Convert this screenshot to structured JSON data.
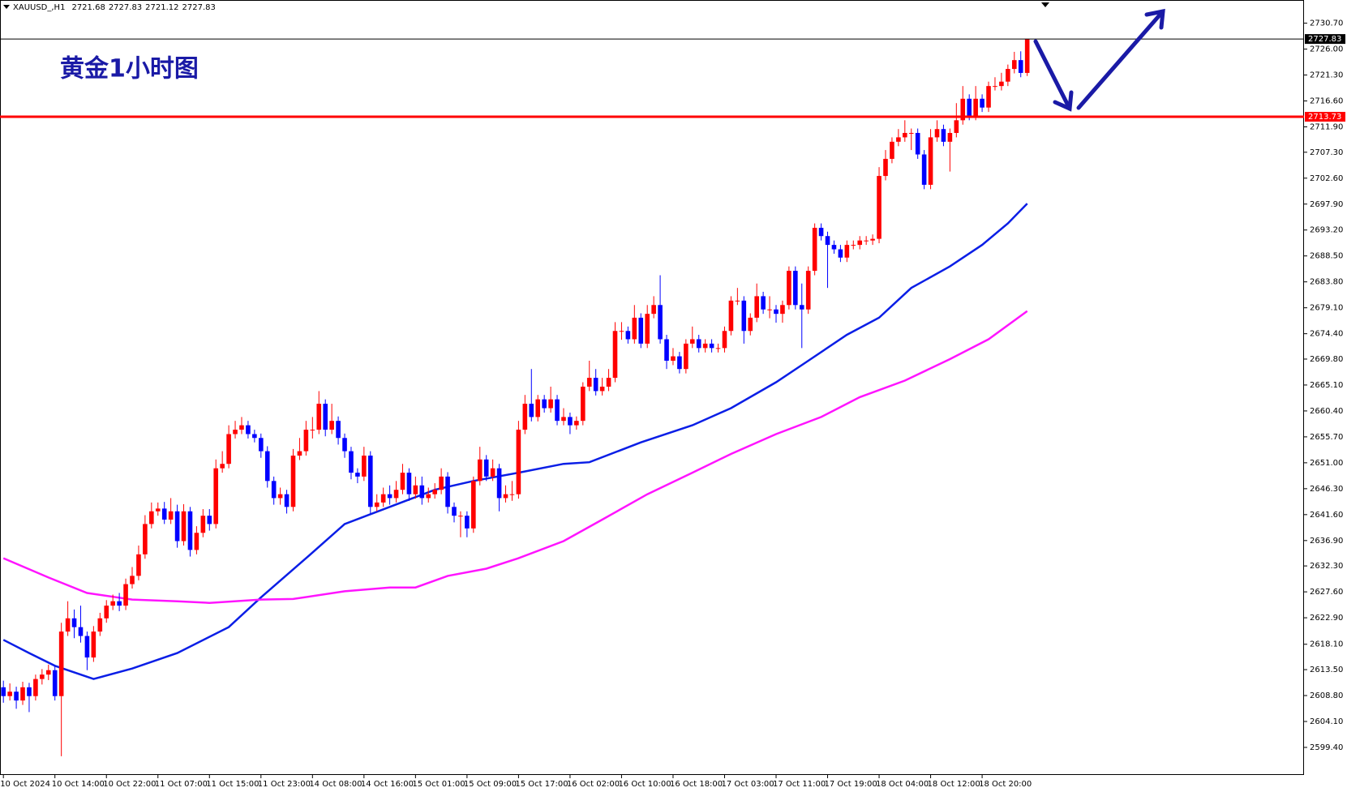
{
  "chart_data": {
    "type": "candlestick",
    "symbol": "XAUUSD_,H1",
    "title": "黄金1小时图",
    "up_color": "#ff0000",
    "down_color": "#0000ff",
    "ylim": [
      2594.4,
      2734.9
    ],
    "yticks": [
      {
        "value": 2599.4,
        "label": "2599.40"
      },
      {
        "value": 2604.1,
        "label": "2604.10"
      },
      {
        "value": 2608.8,
        "label": "2608.80"
      },
      {
        "value": 2613.5,
        "label": "2613.50"
      },
      {
        "value": 2618.1,
        "label": "2618.10"
      },
      {
        "value": 2622.9,
        "label": "2622.90"
      },
      {
        "value": 2627.6,
        "label": "2627.60"
      },
      {
        "value": 2632.3,
        "label": "2632.30"
      },
      {
        "value": 2636.9,
        "label": "2636.90"
      },
      {
        "value": 2641.6,
        "label": "2641.60"
      },
      {
        "value": 2646.3,
        "label": "2646.30"
      },
      {
        "value": 2651.0,
        "label": "2651.00"
      },
      {
        "value": 2655.7,
        "label": "2655.70"
      },
      {
        "value": 2660.4,
        "label": "2660.40"
      },
      {
        "value": 2665.1,
        "label": "2665.10"
      },
      {
        "value": 2669.8,
        "label": "2669.80"
      },
      {
        "value": 2674.4,
        "label": "2674.40"
      },
      {
        "value": 2679.1,
        "label": "2679.10"
      },
      {
        "value": 2683.8,
        "label": "2683.80"
      },
      {
        "value": 2688.5,
        "label": "2688.50"
      },
      {
        "value": 2693.2,
        "label": "2693.20"
      },
      {
        "value": 2697.9,
        "label": "2697.90"
      },
      {
        "value": 2702.6,
        "label": "2702.60"
      },
      {
        "value": 2707.3,
        "label": "2707.30"
      },
      {
        "value": 2711.9,
        "label": "2711.90"
      },
      {
        "value": 2716.6,
        "label": "2716.60"
      },
      {
        "value": 2721.3,
        "label": "2721.30"
      },
      {
        "value": 2726.0,
        "label": "2726.00"
      },
      {
        "value": 2730.7,
        "label": "2730.70"
      }
    ],
    "price_lines": [
      {
        "value": 2713.73,
        "color": "#ff0000"
      },
      {
        "value": 2727.83,
        "color": "#000000"
      }
    ],
    "categories": [
      "10 Oct 2024",
      null,
      null,
      null,
      null,
      null,
      null,
      null,
      "10 Oct 14:00",
      null,
      null,
      null,
      null,
      null,
      null,
      null,
      "10 Oct 22:00",
      null,
      null,
      null,
      null,
      null,
      null,
      null,
      "11 Oct 07:00",
      null,
      null,
      null,
      null,
      null,
      null,
      null,
      "11 Oct 15:00",
      null,
      null,
      null,
      null,
      null,
      null,
      null,
      "11 Oct 23:00",
      null,
      null,
      null,
      null,
      null,
      null,
      null,
      "14 Oct 08:00",
      null,
      null,
      null,
      null,
      null,
      null,
      null,
      "14 Oct 16:00",
      null,
      null,
      null,
      null,
      null,
      null,
      null,
      "15 Oct 01:00",
      null,
      null,
      null,
      null,
      null,
      null,
      null,
      "15 Oct 09:00",
      null,
      null,
      null,
      null,
      null,
      null,
      null,
      "15 Oct 17:00",
      null,
      null,
      null,
      null,
      null,
      null,
      null,
      "16 Oct 02:00",
      null,
      null,
      null,
      null,
      null,
      null,
      null,
      "16 Oct 10:00",
      null,
      null,
      null,
      null,
      null,
      null,
      null,
      "16 Oct 18:00",
      null,
      null,
      null,
      null,
      null,
      null,
      null,
      "17 Oct 03:00",
      null,
      null,
      null,
      null,
      null,
      null,
      null,
      "17 Oct 11:00",
      null,
      null,
      null,
      null,
      null,
      null,
      null,
      "17 Oct 19:00",
      null,
      null,
      null,
      null,
      null,
      null,
      null,
      "18 Oct 04:00",
      null,
      null,
      null,
      null,
      null,
      null,
      null,
      "18 Oct 12:00",
      null,
      null,
      null,
      null,
      null,
      null,
      null,
      "18 Oct 20:00",
      null,
      null,
      null,
      null,
      null,
      null,
      null
    ],
    "ohlc": [
      [
        2610.3,
        2611.5,
        2607.5,
        2608.7
      ],
      [
        2608.7,
        2611.0,
        2607.9,
        2609.5
      ],
      [
        2609.5,
        2610.4,
        2606.4,
        2607.9
      ],
      [
        2607.9,
        2611.3,
        2607.1,
        2610.3
      ],
      [
        2610.3,
        2611.1,
        2605.8,
        2608.7
      ],
      [
        2608.7,
        2612.6,
        2607.9,
        2611.8
      ],
      [
        2611.8,
        2613.6,
        2610.8,
        2612.6
      ],
      [
        2612.6,
        2614.4,
        2611.6,
        2613.4
      ],
      [
        2613.4,
        2614.2,
        2607.9,
        2608.7
      ],
      [
        2608.7,
        2622.0,
        2597.8,
        2620.4
      ],
      [
        2620.4,
        2625.9,
        2619.6,
        2622.8
      ],
      [
        2622.8,
        2624.4,
        2619.2,
        2621.2
      ],
      [
        2621.2,
        2625.1,
        2618.4,
        2619.6
      ],
      [
        2619.6,
        2620.4,
        2613.4,
        2615.7
      ],
      [
        2615.7,
        2621.4,
        2614.9,
        2620.4
      ],
      [
        2620.4,
        2623.8,
        2619.6,
        2622.8
      ],
      [
        2622.8,
        2626.1,
        2622.0,
        2625.1
      ],
      [
        2625.1,
        2627.1,
        2624.3,
        2625.9
      ],
      [
        2625.9,
        2627.4,
        2624.1,
        2625.1
      ],
      [
        2625.1,
        2630.0,
        2624.3,
        2629.0
      ],
      [
        2629.0,
        2632.1,
        2628.2,
        2630.5
      ],
      [
        2630.5,
        2636.0,
        2629.7,
        2634.4
      ],
      [
        2634.4,
        2641.5,
        2633.6,
        2639.9
      ],
      [
        2639.9,
        2643.8,
        2639.1,
        2642.2
      ],
      [
        2642.2,
        2643.8,
        2641.4,
        2642.7
      ],
      [
        2642.7,
        2643.9,
        2639.9,
        2640.7
      ],
      [
        2640.7,
        2644.6,
        2639.9,
        2642.2
      ],
      [
        2642.2,
        2643.4,
        2635.6,
        2636.8
      ],
      [
        2636.8,
        2643.5,
        2636.0,
        2642.2
      ],
      [
        2642.2,
        2643.0,
        2634.0,
        2635.2
      ],
      [
        2635.2,
        2639.5,
        2634.4,
        2638.3
      ],
      [
        2638.3,
        2642.6,
        2637.5,
        2641.4
      ],
      [
        2641.4,
        2642.6,
        2638.7,
        2639.9
      ],
      [
        2639.9,
        2651.6,
        2639.1,
        2650.0
      ],
      [
        2650.0,
        2653.1,
        2649.2,
        2650.8
      ],
      [
        2650.8,
        2657.8,
        2650.0,
        2656.2
      ],
      [
        2656.2,
        2658.6,
        2655.4,
        2657.0
      ],
      [
        2657.0,
        2659.3,
        2656.2,
        2657.8
      ],
      [
        2657.8,
        2658.6,
        2655.4,
        2656.2
      ],
      [
        2656.2,
        2657.0,
        2654.7,
        2655.5
      ],
      [
        2655.5,
        2656.3,
        2651.9,
        2653.1
      ],
      [
        2653.1,
        2654.0,
        2646.5,
        2647.7
      ],
      [
        2647.7,
        2648.5,
        2643.4,
        2644.6
      ],
      [
        2644.6,
        2646.5,
        2643.4,
        2645.3
      ],
      [
        2645.3,
        2646.1,
        2641.8,
        2643.0
      ],
      [
        2643.0,
        2653.5,
        2642.2,
        2652.3
      ],
      [
        2652.3,
        2655.5,
        2651.5,
        2653.1
      ],
      [
        2653.1,
        2658.6,
        2652.3,
        2657.0
      ],
      [
        2657.0,
        2659.3,
        2655.4,
        2657.0
      ],
      [
        2657.0,
        2664.0,
        2656.2,
        2661.7
      ],
      [
        2661.7,
        2662.5,
        2655.8,
        2657.0
      ],
      [
        2657.0,
        2661.7,
        2656.2,
        2658.6
      ],
      [
        2658.6,
        2659.4,
        2654.3,
        2655.5
      ],
      [
        2655.5,
        2656.3,
        2651.9,
        2653.1
      ],
      [
        2653.1,
        2653.9,
        2648.0,
        2649.2
      ],
      [
        2649.2,
        2650.0,
        2647.3,
        2648.5
      ],
      [
        2648.5,
        2653.9,
        2647.7,
        2652.3
      ],
      [
        2652.3,
        2653.1,
        2641.8,
        2643.0
      ],
      [
        2643.0,
        2645.3,
        2642.2,
        2643.8
      ],
      [
        2643.8,
        2646.5,
        2643.0,
        2645.3
      ],
      [
        2645.3,
        2646.9,
        2643.4,
        2644.6
      ],
      [
        2644.6,
        2647.7,
        2643.8,
        2646.1
      ],
      [
        2646.1,
        2650.8,
        2645.3,
        2649.2
      ],
      [
        2649.2,
        2650.0,
        2644.1,
        2645.3
      ],
      [
        2645.3,
        2648.5,
        2644.5,
        2646.9
      ],
      [
        2646.9,
        2648.5,
        2643.4,
        2644.6
      ],
      [
        2644.6,
        2646.5,
        2643.8,
        2645.3
      ],
      [
        2645.3,
        2647.3,
        2644.5,
        2646.1
      ],
      [
        2646.1,
        2650.0,
        2645.3,
        2648.5
      ],
      [
        2648.5,
        2649.3,
        2641.8,
        2643.0
      ],
      [
        2643.0,
        2643.8,
        2640.2,
        2641.4
      ],
      [
        2641.4,
        2642.2,
        2637.5,
        2641.4
      ],
      [
        2641.4,
        2642.2,
        2637.5,
        2639.1
      ],
      [
        2639.1,
        2648.5,
        2638.3,
        2647.7
      ],
      [
        2647.7,
        2653.9,
        2646.9,
        2651.6
      ],
      [
        2651.6,
        2652.4,
        2647.7,
        2648.5
      ],
      [
        2648.5,
        2651.6,
        2647.7,
        2650.0
      ],
      [
        2650.0,
        2650.8,
        2642.2,
        2644.6
      ],
      [
        2644.6,
        2646.9,
        2643.8,
        2645.3
      ],
      [
        2645.3,
        2647.7,
        2644.1,
        2645.3
      ],
      [
        2645.3,
        2658.6,
        2644.5,
        2657.0
      ],
      [
        2657.0,
        2663.3,
        2656.2,
        2661.7
      ],
      [
        2661.7,
        2668.0,
        2658.5,
        2659.3
      ],
      [
        2659.3,
        2663.3,
        2658.5,
        2662.5
      ],
      [
        2662.5,
        2663.3,
        2660.1,
        2660.9
      ],
      [
        2660.9,
        2664.8,
        2660.1,
        2662.5
      ],
      [
        2662.5,
        2663.3,
        2657.8,
        2658.6
      ],
      [
        2658.6,
        2660.9,
        2657.8,
        2659.3
      ],
      [
        2659.3,
        2660.1,
        2656.2,
        2657.8
      ],
      [
        2657.8,
        2659.4,
        2657.0,
        2658.6
      ],
      [
        2658.6,
        2665.6,
        2657.8,
        2664.8
      ],
      [
        2664.8,
        2669.5,
        2664.0,
        2666.4
      ],
      [
        2666.4,
        2668.0,
        2663.2,
        2664.0
      ],
      [
        2664.0,
        2666.4,
        2663.2,
        2664.8
      ],
      [
        2664.8,
        2668.0,
        2664.0,
        2666.4
      ],
      [
        2666.4,
        2676.5,
        2665.6,
        2674.9
      ],
      [
        2674.9,
        2676.5,
        2673.3,
        2674.9
      ],
      [
        2674.9,
        2675.7,
        2672.6,
        2673.4
      ],
      [
        2673.4,
        2679.6,
        2672.6,
        2677.3
      ],
      [
        2677.3,
        2678.1,
        2671.8,
        2672.6
      ],
      [
        2672.6,
        2679.6,
        2671.8,
        2678.0
      ],
      [
        2678.0,
        2681.2,
        2677.2,
        2679.6
      ],
      [
        2679.6,
        2685.0,
        2672.6,
        2673.4
      ],
      [
        2673.4,
        2674.2,
        2668.0,
        2669.5
      ],
      [
        2669.5,
        2671.8,
        2668.7,
        2670.3
      ],
      [
        2670.3,
        2671.1,
        2667.2,
        2668.0
      ],
      [
        2668.0,
        2673.4,
        2667.2,
        2672.6
      ],
      [
        2672.6,
        2675.7,
        2671.8,
        2673.4
      ],
      [
        2673.4,
        2674.2,
        2671.0,
        2671.8
      ],
      [
        2671.8,
        2673.4,
        2671.0,
        2672.6
      ],
      [
        2672.6,
        2673.4,
        2671.0,
        2671.8
      ],
      [
        2671.8,
        2672.6,
        2671.0,
        2671.8
      ],
      [
        2671.8,
        2675.7,
        2671.0,
        2674.9
      ],
      [
        2674.9,
        2681.2,
        2674.1,
        2680.4
      ],
      [
        2680.4,
        2682.7,
        2679.6,
        2680.4
      ],
      [
        2680.4,
        2681.2,
        2672.6,
        2674.9
      ],
      [
        2674.9,
        2678.1,
        2674.1,
        2677.3
      ],
      [
        2677.3,
        2683.5,
        2676.5,
        2681.2
      ],
      [
        2681.2,
        2682.0,
        2678.0,
        2678.8
      ],
      [
        2678.8,
        2681.2,
        2677.2,
        2678.8
      ],
      [
        2678.8,
        2679.6,
        2676.4,
        2678.0
      ],
      [
        2678.0,
        2680.4,
        2676.4,
        2679.6
      ],
      [
        2679.6,
        2686.6,
        2678.8,
        2685.8
      ],
      [
        2685.8,
        2686.6,
        2678.8,
        2679.6
      ],
      [
        2679.6,
        2683.5,
        2671.8,
        2678.8
      ],
      [
        2678.8,
        2686.6,
        2678.0,
        2685.8
      ],
      [
        2685.8,
        2694.4,
        2685.0,
        2693.6
      ],
      [
        2693.6,
        2694.4,
        2691.3,
        2692.1
      ],
      [
        2692.1,
        2692.9,
        2682.7,
        2690.5
      ],
      [
        2690.5,
        2691.3,
        2688.9,
        2689.7
      ],
      [
        2689.7,
        2690.5,
        2687.4,
        2688.2
      ],
      [
        2688.2,
        2691.3,
        2687.4,
        2690.5
      ],
      [
        2690.5,
        2691.3,
        2689.7,
        2690.5
      ],
      [
        2690.5,
        2692.1,
        2689.7,
        2691.3
      ],
      [
        2691.3,
        2692.1,
        2690.5,
        2691.3
      ],
      [
        2691.3,
        2692.4,
        2690.5,
        2691.6
      ],
      [
        2691.6,
        2704.6,
        2690.8,
        2703.0
      ],
      [
        2703.0,
        2707.7,
        2702.2,
        2706.1
      ],
      [
        2706.1,
        2710.0,
        2705.3,
        2709.2
      ],
      [
        2709.2,
        2711.5,
        2708.4,
        2710.0
      ],
      [
        2710.0,
        2713.1,
        2709.2,
        2710.8
      ],
      [
        2710.8,
        2711.6,
        2707.7,
        2710.8
      ],
      [
        2710.8,
        2711.6,
        2706.1,
        2706.9
      ],
      [
        2706.9,
        2707.7,
        2700.6,
        2701.4
      ],
      [
        2701.4,
        2711.5,
        2700.6,
        2710.0
      ],
      [
        2710.0,
        2713.1,
        2709.2,
        2711.5
      ],
      [
        2711.5,
        2712.3,
        2708.4,
        2709.2
      ],
      [
        2709.2,
        2711.6,
        2703.8,
        2710.8
      ],
      [
        2710.8,
        2716.2,
        2710.0,
        2713.1
      ],
      [
        2713.1,
        2719.3,
        2712.3,
        2717.0
      ],
      [
        2717.0,
        2717.8,
        2713.1,
        2713.9
      ],
      [
        2713.9,
        2719.3,
        2713.1,
        2717.0
      ],
      [
        2717.0,
        2717.8,
        2714.6,
        2715.4
      ],
      [
        2715.4,
        2720.1,
        2714.6,
        2719.3
      ],
      [
        2719.3,
        2720.9,
        2718.5,
        2719.3
      ],
      [
        2719.3,
        2721.7,
        2718.5,
        2720.1
      ],
      [
        2720.1,
        2723.2,
        2719.3,
        2722.4
      ],
      [
        2722.4,
        2725.5,
        2721.6,
        2724.0
      ],
      [
        2724.0,
        2725.6,
        2720.9,
        2721.68
      ],
      [
        2721.68,
        2727.83,
        2721.12,
        2727.83
      ]
    ],
    "series": [
      {
        "color": "#0a1ee6",
        "x": [
          0,
          4,
          8,
          14,
          20,
          27,
          35,
          40,
          47,
          53,
          60,
          67,
          73,
          80,
          87,
          91,
          99,
          107,
          113,
          120,
          125,
          131,
          136,
          141,
          147,
          152,
          156,
          159
        ],
        "values": [
          2618.9,
          2616.5,
          2614.2,
          2611.8,
          2613.7,
          2616.5,
          2621.2,
          2626.6,
          2633.7,
          2639.9,
          2643.0,
          2646.1,
          2647.7,
          2649.2,
          2650.8,
          2651.1,
          2654.7,
          2657.8,
          2660.9,
          2665.6,
          2669.5,
          2674.2,
          2677.3,
          2682.7,
          2686.6,
          2690.5,
          2694.4,
          2698.0
        ]
      },
      {
        "color": "#ff14ff",
        "x": [
          0,
          7,
          13,
          20,
          27,
          32,
          40,
          45,
          53,
          60,
          64,
          69,
          75,
          80,
          87,
          93,
          100,
          107,
          113,
          120,
          127,
          133,
          140,
          147,
          153,
          159
        ],
        "values": [
          2633.7,
          2630.2,
          2627.4,
          2626.2,
          2625.9,
          2625.6,
          2626.2,
          2626.3,
          2627.7,
          2628.4,
          2628.4,
          2630.5,
          2631.8,
          2633.7,
          2636.8,
          2640.7,
          2645.3,
          2649.2,
          2652.6,
          2656.2,
          2659.3,
          2662.9,
          2665.9,
          2669.8,
          2673.4,
          2678.5
        ]
      }
    ]
  }
}
